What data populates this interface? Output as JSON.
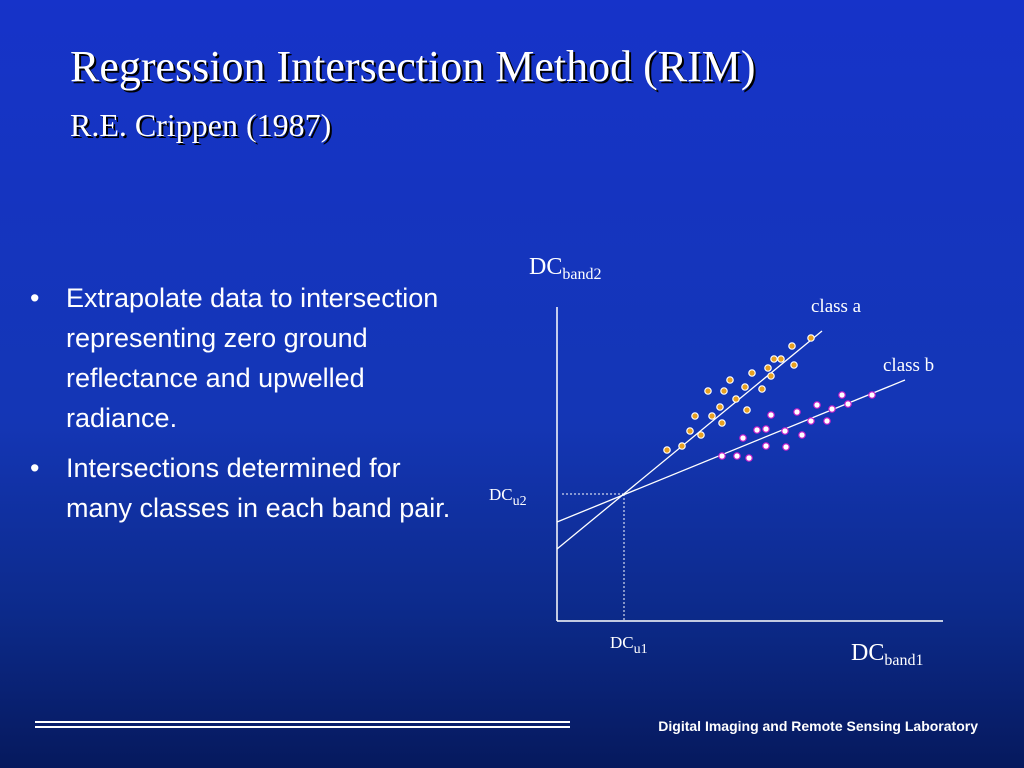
{
  "slide": {
    "title": "Regression Intersection Method (RIM)",
    "subtitle": "R.E. Crippen (1987)",
    "bullet_char": "•",
    "bullets": [
      "Extrapolate data to intersection representing zero ground reflectance and upwelled radiance.",
      "Intersections determined for many classes in each band pair."
    ],
    "footer": "Digital Imaging and Remote Sensing Laboratory"
  },
  "diagram": {
    "y_axis": {
      "main": "DC",
      "sub": "band2"
    },
    "x_axis": {
      "main": "DC",
      "sub": "band1"
    },
    "intercept_y": {
      "main": "DC",
      "sub": "u2"
    },
    "intercept_x": {
      "main": "DC",
      "sub": "u1"
    },
    "class_a_label": "class a",
    "class_b_label": "class b",
    "colors": {
      "class_a_fill": "#e8a020",
      "class_b_fill": "#ffffff",
      "class_b_stroke": "#cc22cc",
      "lines": "#ffffff"
    }
  }
}
